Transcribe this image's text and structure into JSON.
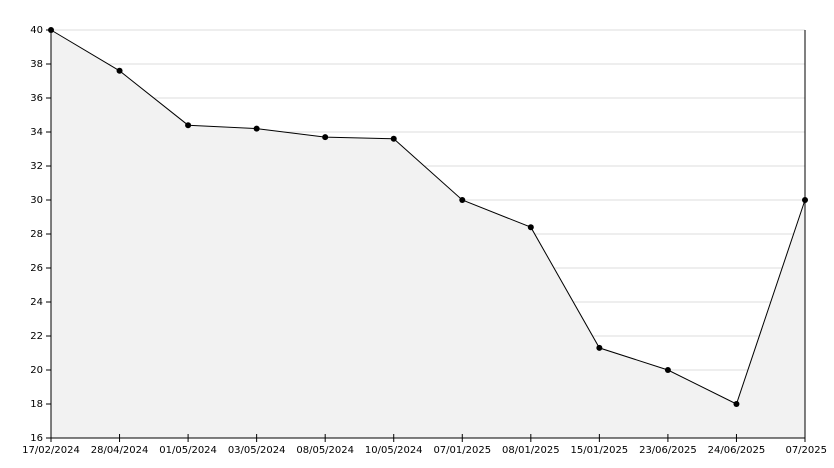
{
  "chart_data": {
    "type": "area",
    "categories": [
      "17/02/2024",
      "28/04/2024",
      "01/05/2024",
      "03/05/2024",
      "08/05/2024",
      "10/05/2024",
      "07/01/2025",
      "08/01/2025",
      "15/01/2025",
      "23/06/2025",
      "24/06/2025",
      "07/2025"
    ],
    "values": [
      40,
      37.6,
      34.4,
      34.2,
      33.7,
      33.6,
      30,
      28.4,
      21.3,
      20,
      18,
      30
    ],
    "color": "#000000",
    "area_color": "#f2f2f2",
    "ylim": [
      16,
      40
    ],
    "yticks": [
      16,
      18,
      20,
      22,
      24,
      26,
      28,
      30,
      32,
      34,
      36,
      38,
      40
    ],
    "grid": true
  }
}
